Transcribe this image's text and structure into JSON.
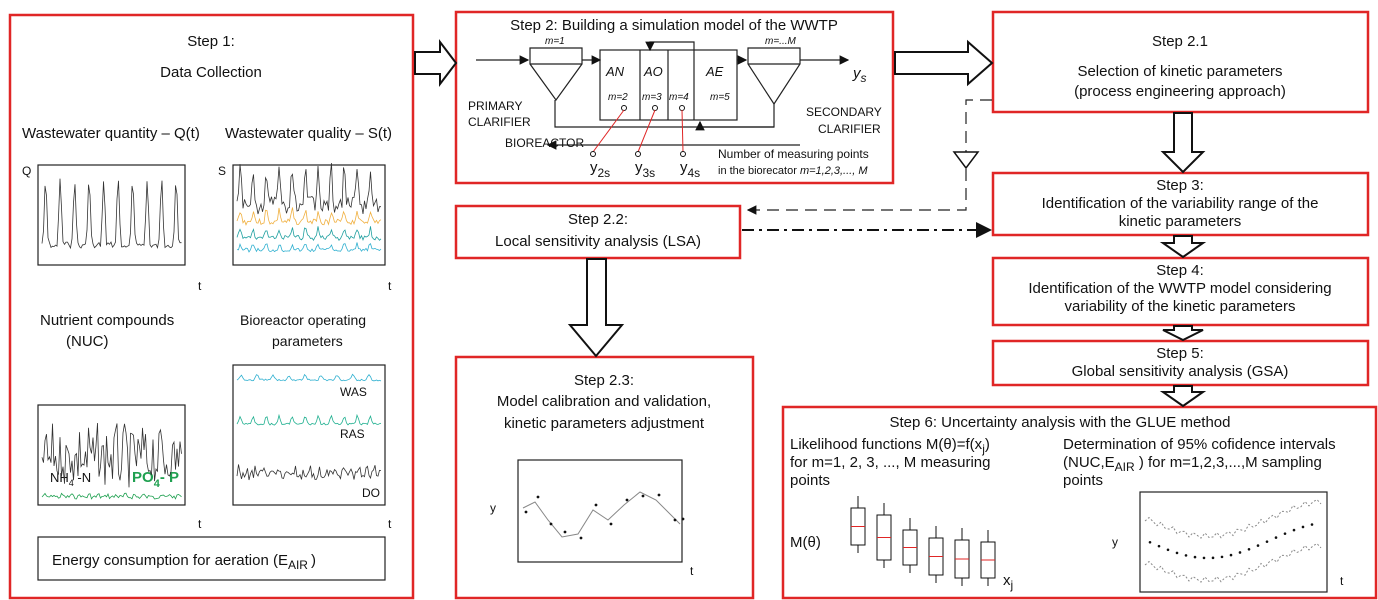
{
  "step1": {
    "title": "Step 1:",
    "subtitle": "Data Collection",
    "quantity_label": "Wastewater quantity – Q(t)",
    "quality_label": "Wastewater quality – S(t)",
    "q_axis": "Q",
    "s_axis": "S",
    "t_axis": "t",
    "nutrient_label": [
      "Nutrient compounds",
      "(NUC)"
    ],
    "operating_label": [
      "Bioreactor operating",
      "parameters"
    ],
    "nh4": {
      "text": "NH",
      "sub": "4",
      "after": " -N"
    },
    "po4": {
      "text": "PO",
      "sub": "4",
      "after": "- P"
    },
    "was": "WAS",
    "ras": "RAS",
    "do": "DO",
    "energy": {
      "text": "Energy consumption for aeration (E",
      "sub": "AIR",
      "after": ")"
    }
  },
  "step2": {
    "title": "Step 2:  Building a simulation model of the WWTP",
    "m1": "m=1",
    "mM": "m=...M",
    "zones": [
      "AN",
      "AO",
      "AE"
    ],
    "points": [
      "m=2",
      "m=3",
      "m=4",
      "m=5"
    ],
    "ys": {
      "text": "y",
      "sub": "s"
    },
    "primary": [
      "PRIMARY",
      "CLARIFIER"
    ],
    "secondary": [
      "SECONDARY",
      "CLARIFIER"
    ],
    "bioreactor": "BIOREACTOR",
    "outputs": [
      {
        "text": "y",
        "sub": "2s"
      },
      {
        "text": "y",
        "sub": "3s"
      },
      {
        "text": "y",
        "sub": "4s"
      }
    ],
    "note": [
      "Number of measuring points",
      "in the biorecator",
      "m=1,2,3,..., M"
    ]
  },
  "step2_1": {
    "title": "Step 2.1",
    "lines": [
      "Selection of kinetic parameters",
      "(process engineering approach)"
    ]
  },
  "step2_2": {
    "title": "Step 2.2:",
    "lines": [
      "Local sensitivity analysis (LSA)"
    ]
  },
  "step2_3": {
    "title": "Step 2.3:",
    "lines": [
      "Model calibration and validation,",
      "kinetic parameters adjustment"
    ],
    "y_axis": "y",
    "t_axis": "t"
  },
  "step3": {
    "title": "Step 3:",
    "lines": [
      "Identification of the variability range of the",
      "kinetic parameters"
    ]
  },
  "step4": {
    "title": "Step 4:",
    "lines": [
      "Identification of the WWTP model considering",
      "variability of the kinetic parameters"
    ]
  },
  "step5": {
    "title": "Step 5:",
    "lines": [
      "Global sensitivity analysis (GSA)"
    ]
  },
  "step6": {
    "title": "Step 6: Uncertainty analysis with the GLUE method",
    "left": [
      {
        "text": "Likelihood functions M(θ)=f(x",
        "sub": "j",
        "after": ")"
      },
      {
        "text": "for m=1, 2, 3, ..., M measuring"
      },
      {
        "text": "points"
      }
    ],
    "right": [
      {
        "text": "Determination of 95% cofidence intervals"
      },
      {
        "text": "(NUC,E",
        "sub": "AIR",
        "after": " ) for m=1,2,3,...,M sampling"
      },
      {
        "text": "points"
      }
    ],
    "m_axis": "M(θ)",
    "x_axis": {
      "text": "x",
      "sub": "j"
    },
    "y_axis": "y",
    "t_axis": "t"
  }
}
